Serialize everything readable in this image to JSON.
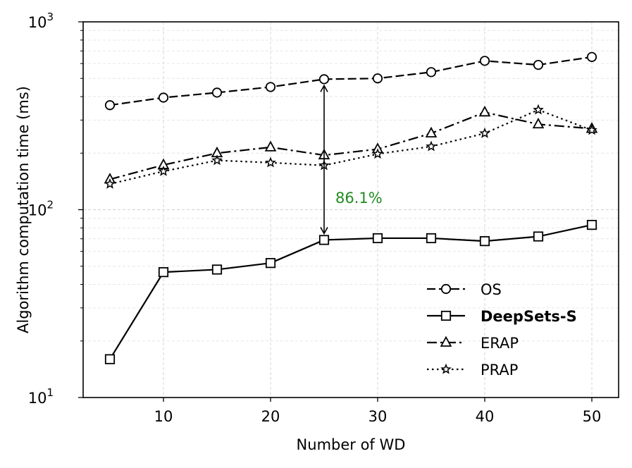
{
  "chart_data": {
    "type": "line",
    "xlabel": "Number of WD",
    "ylabel": "Algorithm computation time (ms)",
    "xlim": [
      2.5,
      52.5
    ],
    "ylim": [
      10,
      1000
    ],
    "y_scale": "log",
    "x_ticks": [
      "10",
      "20",
      "30",
      "40",
      "50"
    ],
    "x_tick_values": [
      10,
      20,
      30,
      40,
      50
    ],
    "y_ticks": [
      {
        "base": "10",
        "exp": "1",
        "value": 10
      },
      {
        "base": "10",
        "exp": "2",
        "value": 100
      },
      {
        "base": "10",
        "exp": "3",
        "value": 1000
      }
    ],
    "grid": true,
    "legend_position": "lower-right",
    "x": [
      5,
      10,
      15,
      20,
      25,
      30,
      35,
      40,
      45,
      50
    ],
    "series": [
      {
        "name": "OS",
        "marker": "circle",
        "dash": "dashed",
        "bold": false,
        "values": [
          360,
          395,
          420,
          450,
          495,
          500,
          540,
          620,
          590,
          650
        ]
      },
      {
        "name": "DeepSets-S",
        "marker": "square",
        "dash": "solid",
        "bold": true,
        "values": [
          16,
          46.5,
          48,
          52,
          69,
          70.5,
          70.5,
          68,
          72,
          83
        ]
      },
      {
        "name": "ERAP",
        "marker": "triangle",
        "dash": "dashdot",
        "bold": false,
        "values": [
          145,
          173,
          200,
          215,
          195,
          210,
          255,
          330,
          285,
          270
        ]
      },
      {
        "name": "PRAP",
        "marker": "star",
        "dash": "dotted",
        "bold": false,
        "values": [
          137,
          160,
          183,
          178,
          172,
          198,
          217,
          255,
          340,
          265
        ]
      }
    ],
    "annotation": {
      "text": "86.1%",
      "color": "#228B22",
      "x": 25,
      "y_top": 495,
      "y_bottom": 69
    }
  }
}
